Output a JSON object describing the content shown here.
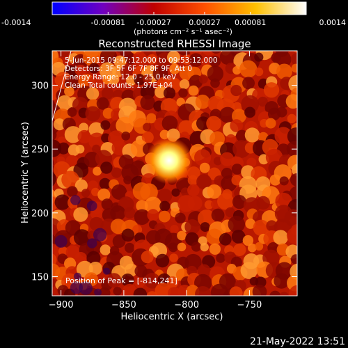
{
  "chart_data": {
    "type": "heatmap",
    "title": "Reconstructed RHESSI Image",
    "xlabel": "Heliocentric X (arcsec)",
    "ylabel": "Heliocentric Y (arcsec)",
    "xlim": [
      -907,
      -712
    ],
    "ylim": [
      135,
      327
    ],
    "xticks": [
      -900,
      -850,
      -800,
      -750
    ],
    "yticks": [
      150,
      200,
      250,
      300
    ],
    "colorbar": {
      "range": [
        -0.0014,
        0.0014
      ],
      "ticks": [
        "-0.0014",
        "-0.00081",
        "-0.00027",
        "0.00027",
        "0.00081",
        "0.0014"
      ],
      "unit_label": "(photons cm⁻² s⁻¹ asec⁻²)",
      "colors": [
        "#0000ff",
        "#7000c0",
        "#c00000",
        "#ff5000",
        "#ffc000",
        "#ffffff"
      ]
    },
    "annotations": [
      "5-Jun-2015 09:47:12.000 to 09:53:12.000",
      "Detectors: 3F 5F 6F 7F 8F 9F, Att 0",
      "Energy Range: 12.0 - 25.0 keV",
      "Clean    Total counts: 1.97E+04"
    ],
    "peak_label": "Position of Peak = [-814,241]",
    "peak": [
      -814,
      241
    ],
    "limb_line": [
      [
        -907,
        272
      ],
      [
        -892,
        327
      ]
    ],
    "timestamp": "21-May-2022 13:51"
  }
}
